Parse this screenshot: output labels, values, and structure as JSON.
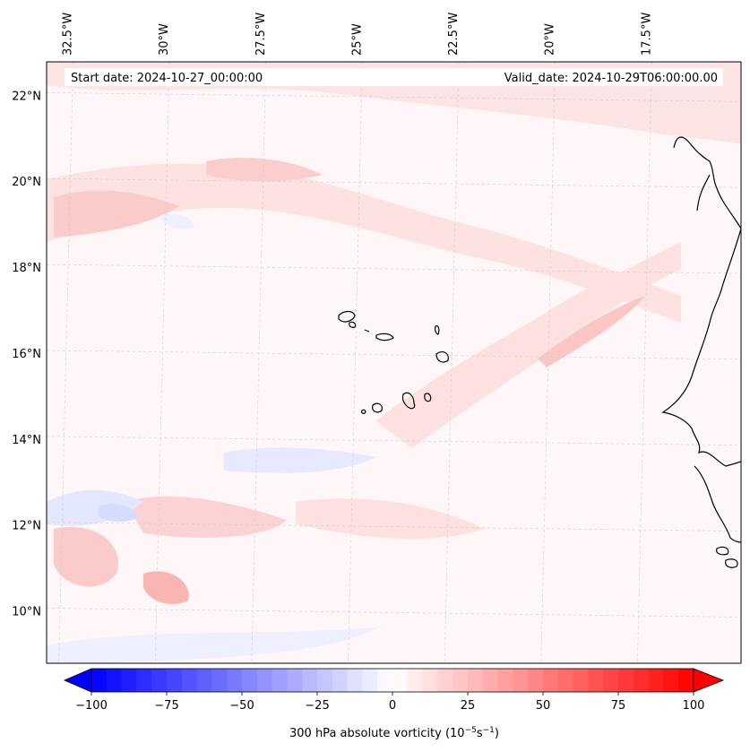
{
  "map": {
    "projection_extent": {
      "lon_min": -33.0,
      "lon_max": -15.0,
      "lat_min": 8.8,
      "lat_max": 22.8
    },
    "annotations": {
      "start_date": "Start date: 2024-10-27_00:00:00",
      "valid_date": "Valid_date: 2024-10-29T06:00:00.00"
    },
    "lon_labels": [
      {
        "lon": -32.5,
        "text": "32.5°W"
      },
      {
        "lon": -30.0,
        "text": "30°W"
      },
      {
        "lon": -27.5,
        "text": "27.5°W"
      },
      {
        "lon": -25.0,
        "text": "25°W"
      },
      {
        "lon": -22.5,
        "text": "22.5°W"
      },
      {
        "lon": -20.0,
        "text": "20°W"
      },
      {
        "lon": -17.5,
        "text": "17.5°W"
      }
    ],
    "lat_labels": [
      {
        "lat": 22,
        "text": "22°N"
      },
      {
        "lat": 20,
        "text": "20°N"
      },
      {
        "lat": 18,
        "text": "18°N"
      },
      {
        "lat": 16,
        "text": "16°N"
      },
      {
        "lat": 14,
        "text": "14°N"
      },
      {
        "lat": 12,
        "text": "12°N"
      },
      {
        "lat": 10,
        "text": "10°N"
      }
    ],
    "gridlines": true,
    "gridline_style": "dashed light gray",
    "coastline_color": "#000000",
    "field_colors": {
      "light_red": "#fde3e3",
      "mid_red": "#fbc8c8",
      "strong_red": "#f8a8a8",
      "light_blue": "#e4e8ff",
      "mid_blue": "#c9d0ff",
      "background": "#fff6f6"
    }
  },
  "colorbar": {
    "label": "300 hPa absolute vorticity (10",
    "label_exp1": "−5",
    "label_mid": "s",
    "label_exp2": "−1",
    "label_end": ")",
    "min": -100,
    "max": 100,
    "ticks": [
      {
        "value": -100,
        "text": "−100"
      },
      {
        "value": -75,
        "text": "−75"
      },
      {
        "value": -50,
        "text": "−50"
      },
      {
        "value": -25,
        "text": "−25"
      },
      {
        "value": 0,
        "text": "0"
      },
      {
        "value": 25,
        "text": "25"
      },
      {
        "value": 50,
        "text": "50"
      },
      {
        "value": 75,
        "text": "75"
      },
      {
        "value": 100,
        "text": "100"
      }
    ],
    "extend": "both",
    "colormap": "bwr"
  }
}
